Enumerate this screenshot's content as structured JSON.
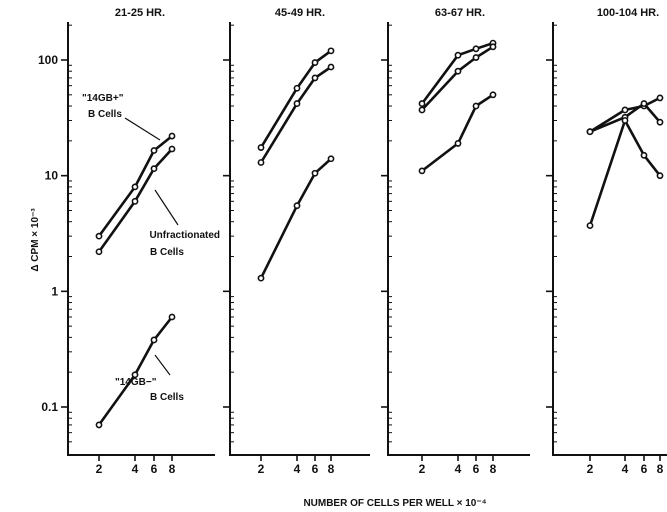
{
  "chart_data": {
    "type": "line",
    "yscale": "log",
    "ylim": [
      0.05,
      180
    ],
    "ylabel": "Δ CPM × 10⁻³",
    "xlabel": "NUMBER OF CELLS PER WELL × 10⁻⁴",
    "yticks": [
      {
        "value": 100,
        "label": "100"
      },
      {
        "value": 10,
        "label": "10"
      },
      {
        "value": 1,
        "label": "1"
      },
      {
        "value": 0.1,
        "label": "0.1"
      }
    ],
    "xticks": [
      2,
      4,
      6,
      8
    ],
    "annotations": {
      "plus_line1": "\"14GB+\"",
      "plus_line2": "B Cells",
      "unfrac_line1": "Unfractionated",
      "unfrac_line2": "B Cells",
      "minus_line1": "\"14GB−\"",
      "minus_line2": "B Cells"
    },
    "panels": [
      {
        "title": "21-25 HR.",
        "series": [
          {
            "name": "\"14GB+\" B Cells",
            "x": [
              2,
              4,
              6,
              8
            ],
            "y": [
              3.0,
              8.0,
              16.5,
              22
            ]
          },
          {
            "name": "Unfractionated B Cells",
            "x": [
              2,
              4,
              6,
              8
            ],
            "y": [
              2.2,
              6.0,
              11.5,
              17
            ]
          },
          {
            "name": "\"14GB−\" B Cells",
            "x": [
              2,
              4,
              6,
              8
            ],
            "y": [
              0.07,
              0.19,
              0.38,
              0.6
            ]
          }
        ]
      },
      {
        "title": "45-49 HR.",
        "series": [
          {
            "x": [
              2,
              4,
              6,
              8
            ],
            "y": [
              17.5,
              57,
              95,
              120
            ]
          },
          {
            "x": [
              2,
              4,
              6,
              8
            ],
            "y": [
              13,
              42,
              70,
              87
            ]
          },
          {
            "x": [
              2,
              4,
              6,
              8
            ],
            "y": [
              1.3,
              5.5,
              10.5,
              14
            ]
          }
        ]
      },
      {
        "title": "63-67 HR.",
        "series": [
          {
            "x": [
              2,
              4,
              6,
              8
            ],
            "y": [
              42,
              110,
              125,
              140
            ]
          },
          {
            "x": [
              2,
              4,
              6,
              8
            ],
            "y": [
              37,
              80,
              105,
              130
            ]
          },
          {
            "x": [
              2,
              4,
              6,
              8
            ],
            "y": [
              11,
              19,
              40,
              50
            ]
          }
        ]
      },
      {
        "title": "100-104 HR.",
        "series": [
          {
            "x": [
              2,
              4,
              6,
              8
            ],
            "y": [
              24,
              37,
              40,
              47
            ]
          },
          {
            "x": [
              2,
              4,
              6,
              8
            ],
            "y": [
              24,
              32,
              42,
              29
            ]
          },
          {
            "x": [
              2,
              4,
              6,
              8
            ],
            "y": [
              3.7,
              30,
              15,
              10
            ]
          }
        ]
      }
    ]
  }
}
